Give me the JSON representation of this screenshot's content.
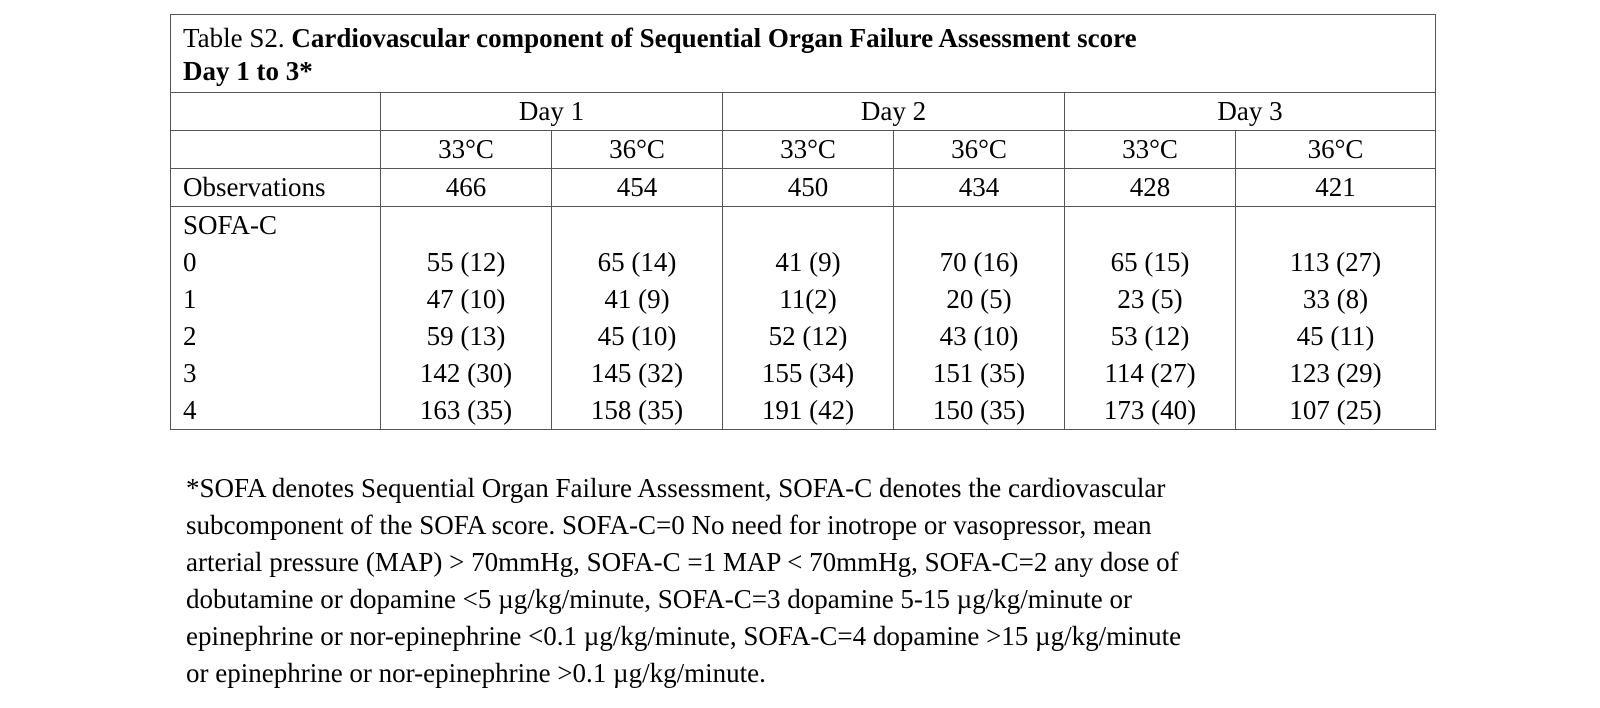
{
  "table": {
    "caption_prefix": "Table S2.",
    "caption_bold_line1": "Cardiovascular component of Sequential Organ Failure Assessment score",
    "caption_bold_line2": "Day 1 to 3*",
    "days": [
      "Day 1",
      "Day 2",
      "Day 3"
    ],
    "temps": [
      "33°C",
      "36°C",
      "33°C",
      "36°C",
      "33°C",
      "36°C"
    ],
    "observations_label": "Observations",
    "observations": [
      "466",
      "454",
      "450",
      "434",
      "428",
      "421"
    ],
    "section_label": "SOFA-C",
    "score_labels": [
      "0",
      "1",
      "2",
      "3",
      "4"
    ],
    "columns": [
      [
        "55 (12)",
        "47 (10)",
        "59 (13)",
        "142 (30)",
        "163 (35)"
      ],
      [
        "65 (14)",
        "41 (9)",
        "45 (10)",
        "145 (32)",
        "158 (35)"
      ],
      [
        "41 (9)",
        "11(2)",
        "52 (12)",
        "155 (34)",
        "191 (42)"
      ],
      [
        "70 (16)",
        "20 (5)",
        "43 (10)",
        "151 (35)",
        "150 (35)"
      ],
      [
        "65 (15)",
        "23 (5)",
        "53 (12)",
        "114 (27)",
        "173 (40)"
      ],
      [
        "113 (27)",
        "33 (8)",
        "45 (11)",
        "123 (29)",
        "107 (25)"
      ]
    ]
  },
  "footnote": {
    "lines": [
      "*SOFA denotes Sequential Organ Failure Assessment, SOFA-C denotes the cardiovascular",
      "subcomponent of the SOFA score. SOFA-C=0 No need for inotrope or vasopressor, mean",
      "arterial pressure (MAP) > 70mmHg, SOFA-C =1 MAP < 70mmHg, SOFA-C=2 any dose of",
      "dobutamine or dopamine <5 µg/kg/minute, SOFA-C=3 dopamine 5-15 µg/kg/minute or",
      "epinephrine or nor-epinephrine <0.1 µg/kg/minute, SOFA-C=4 dopamine >15 µg/kg/minute",
      "or epinephrine or nor-epinephrine >0.1 µg/kg/minute."
    ]
  }
}
